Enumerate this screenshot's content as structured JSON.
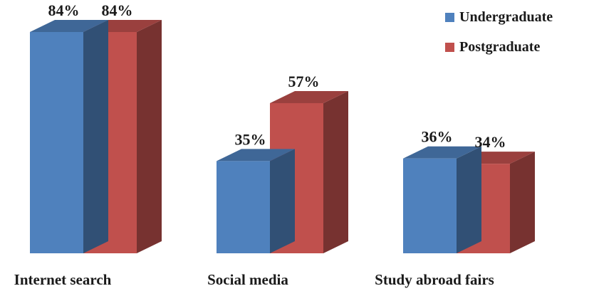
{
  "chart_data": {
    "type": "bar",
    "categories": [
      "Internet search",
      "Social media",
      "Study abroad fairs"
    ],
    "series": [
      {
        "name": "Undergraduate",
        "values": [
          84,
          35,
          36
        ],
        "labels": [
          "84%",
          "35%",
          "36%"
        ],
        "color": "#4f81bd"
      },
      {
        "name": "Postgraduate",
        "values": [
          84,
          57,
          34
        ],
        "labels": [
          "84%",
          "57%",
          "34%"
        ],
        "color": "#c0504d"
      }
    ],
    "title": "",
    "xlabel": "",
    "ylabel": "",
    "ylim": [
      0,
      84
    ],
    "grid": false,
    "legend_position": "top-right",
    "style": "3d-column"
  }
}
